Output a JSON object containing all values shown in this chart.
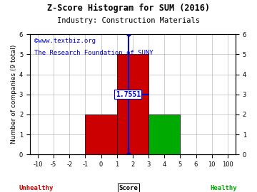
{
  "title": "Z-Score Histogram for SUM (2016)",
  "subtitle": "Industry: Construction Materials",
  "watermark1": "©www.textbiz.org",
  "watermark2": "The Research Foundation of SUNY",
  "ylabel": "Number of companies (9 total)",
  "xlabel": "Score",
  "xlabel_unhealthy": "Unhealthy",
  "xlabel_healthy": "Healthy",
  "xtick_labels": [
    "-10",
    "-5",
    "-2",
    "-1",
    "0",
    "1",
    "2",
    "3",
    "4",
    "5",
    "6",
    "10",
    "100"
  ],
  "xtick_positions": [
    -10,
    -5,
    -2,
    -1,
    0,
    1,
    2,
    3,
    4,
    5,
    6,
    10,
    100
  ],
  "ylim": [
    0,
    6
  ],
  "ytick_positions": [
    0,
    1,
    2,
    3,
    4,
    5,
    6
  ],
  "bars": [
    {
      "x_left": -1,
      "x_right": 1,
      "height": 2,
      "color": "#cc0000"
    },
    {
      "x_left": 1,
      "x_right": 3,
      "height": 5,
      "color": "#cc0000"
    },
    {
      "x_left": 3,
      "x_right": 5,
      "height": 2,
      "color": "#00aa00"
    }
  ],
  "zscore_value": 1.7551,
  "zscore_label": "1.7551",
  "zscore_line_color": "#0000cc",
  "zscore_dot_top_y": 6,
  "zscore_dot_bottom_y": 0,
  "zscore_hline_y": 3.0,
  "background_color": "#ffffff",
  "grid_color": "#aaaaaa",
  "title_color": "#000000",
  "subtitle_color": "#000000",
  "watermark1_color": "#0000cc",
  "watermark2_color": "#0000cc",
  "unhealthy_color": "#cc0000",
  "healthy_color": "#00aa00",
  "title_fontsize": 8.5,
  "subtitle_fontsize": 7.5,
  "watermark_fontsize": 6.5,
  "label_fontsize": 6.5,
  "tick_fontsize": 6,
  "zscore_label_fontsize": 7
}
